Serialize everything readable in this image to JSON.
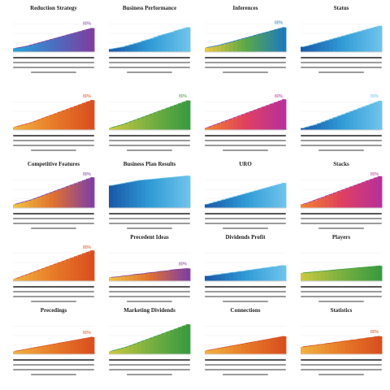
{
  "colors": {
    "blue": [
      "#1a5aa8",
      "#2f9ad6",
      "#6cc2ea"
    ],
    "purple": [
      "#2aa0d8",
      "#4a6fc0",
      "#7d3fa0"
    ],
    "green_blue": [
      "#e8c840",
      "#5aa848",
      "#1f7ab8"
    ],
    "orange": [
      "#f0b040",
      "#e87a28",
      "#d85020"
    ],
    "green": [
      "#c8c840",
      "#7ab040",
      "#3a9a40"
    ],
    "magenta": [
      "#f08030",
      "#e04060",
      "#b83098"
    ],
    "yellow_purple": [
      "#f0c040",
      "#e07030",
      "#8040a0"
    ],
    "axis": "#cfcfcf"
  },
  "chart_data": [
    {
      "type": "area",
      "title": "Reduction Strategy",
      "x": [
        1,
        2,
        3,
        4,
        5,
        6,
        7,
        8,
        9,
        10,
        11,
        12,
        13,
        14,
        15,
        16,
        17,
        18,
        19,
        20
      ],
      "values": [
        10,
        12,
        14,
        16,
        19,
        22,
        25,
        28,
        31,
        34,
        37,
        40,
        43,
        46,
        49,
        52,
        55,
        58,
        61,
        64
      ],
      "value_label": "80%",
      "palette": "purple",
      "ylim": [
        0,
        100
      ]
    },
    {
      "type": "area",
      "title": "Business Performance",
      "x": [
        1,
        2,
        3,
        4,
        5,
        6,
        7,
        8,
        9,
        10,
        11,
        12,
        13,
        14,
        15,
        16,
        17,
        18,
        19,
        20
      ],
      "values": [
        8,
        10,
        12,
        14,
        17,
        20,
        23,
        26,
        30,
        33,
        36,
        40,
        44,
        47,
        50,
        53,
        57,
        60,
        63,
        66
      ],
      "value_label": "",
      "palette": "blue",
      "ylim": [
        0,
        100
      ]
    },
    {
      "type": "area",
      "title": "Inferences",
      "x": [
        1,
        2,
        3,
        4,
        5,
        6,
        7,
        8,
        9,
        10,
        11,
        12,
        13,
        14,
        15,
        16,
        17,
        18,
        19,
        20
      ],
      "values": [
        12,
        14,
        16,
        18,
        21,
        24,
        27,
        30,
        33,
        36,
        39,
        42,
        45,
        48,
        51,
        54,
        57,
        60,
        63,
        66
      ],
      "value_label": "80%",
      "palette": "green_blue",
      "ylim": [
        0,
        100
      ]
    },
    {
      "type": "area",
      "title": "Status",
      "x": [
        1,
        2,
        3,
        4,
        5,
        6,
        7,
        8,
        9,
        10,
        11,
        12,
        13,
        14,
        15,
        16,
        17,
        18,
        19,
        20
      ],
      "values": [
        14,
        16,
        19,
        22,
        25,
        28,
        31,
        34,
        37,
        40,
        43,
        46,
        49,
        52,
        55,
        58,
        61,
        64,
        67,
        70
      ],
      "value_label": "",
      "palette": "blue",
      "ylim": [
        0,
        100
      ]
    },
    {
      "type": "area",
      "title": "",
      "x": [
        1,
        2,
        3,
        4,
        5,
        6,
        7,
        8,
        9,
        10,
        11,
        12,
        13,
        14,
        15,
        16,
        17,
        18,
        19,
        20
      ],
      "values": [
        8,
        11,
        14,
        17,
        20,
        24,
        28,
        32,
        36,
        40,
        44,
        48,
        52,
        56,
        60,
        64,
        68,
        72,
        76,
        80
      ],
      "value_label": "80%",
      "palette": "orange",
      "ylim": [
        0,
        100
      ]
    },
    {
      "type": "area",
      "title": "",
      "x": [
        1,
        2,
        3,
        4,
        5,
        6,
        7,
        8,
        9,
        10,
        11,
        12,
        13,
        14,
        15,
        16,
        17,
        18,
        19,
        20
      ],
      "values": [
        6,
        9,
        12,
        15,
        19,
        23,
        27,
        31,
        35,
        39,
        43,
        47,
        51,
        55,
        59,
        63,
        67,
        71,
        75,
        79
      ],
      "value_label": "80%",
      "palette": "green",
      "ylim": [
        0,
        100
      ]
    },
    {
      "type": "area",
      "title": "",
      "x": [
        1,
        2,
        3,
        4,
        5,
        6,
        7,
        8,
        9,
        10,
        11,
        12,
        13,
        14,
        15,
        16,
        17,
        18,
        19,
        20
      ],
      "values": [
        6,
        10,
        14,
        18,
        22,
        26,
        30,
        34,
        38,
        42,
        46,
        50,
        54,
        58,
        62,
        66,
        70,
        74,
        78,
        82
      ],
      "value_label": "80%",
      "palette": "magenta",
      "ylim": [
        0,
        100
      ]
    },
    {
      "type": "area",
      "title": "",
      "x": [
        1,
        2,
        3,
        4,
        5,
        6,
        7,
        8,
        9,
        10,
        11,
        12,
        13,
        14,
        15,
        16,
        17,
        18,
        19,
        20
      ],
      "values": [
        5,
        8,
        11,
        14,
        18,
        22,
        26,
        30,
        34,
        38,
        42,
        46,
        50,
        54,
        58,
        62,
        66,
        70,
        74,
        78
      ],
      "value_label": "80%",
      "palette": "blue",
      "ylim": [
        0,
        100
      ]
    },
    {
      "type": "area",
      "title": "Competitive Features",
      "x": [
        1,
        2,
        3,
        4,
        5,
        6,
        7,
        8,
        9,
        10,
        11,
        12,
        13,
        14,
        15,
        16,
        17,
        18,
        19,
        20
      ],
      "values": [
        10,
        13,
        16,
        19,
        22,
        26,
        30,
        34,
        38,
        42,
        46,
        50,
        54,
        58,
        62,
        66,
        70,
        74,
        78,
        82
      ],
      "value_label": "80%",
      "palette": "yellow_purple",
      "ylim": [
        0,
        100
      ]
    },
    {
      "type": "area",
      "title": "Business Plan Results",
      "x": [
        1,
        2,
        3,
        4,
        5,
        6,
        7,
        8,
        9,
        10,
        11,
        12,
        13,
        14,
        15,
        16,
        17,
        18,
        19,
        20
      ],
      "values": [
        60,
        62,
        64,
        66,
        68,
        70,
        72,
        74,
        75,
        76,
        77,
        78,
        79,
        80,
        81,
        82,
        83,
        84,
        85,
        86
      ],
      "value_label": "",
      "palette": "blue",
      "ylim": [
        0,
        100
      ]
    },
    {
      "type": "area",
      "title": "URO",
      "x": [
        1,
        2,
        3,
        4,
        5,
        6,
        7,
        8,
        9,
        10,
        11,
        12,
        13,
        14,
        15,
        16,
        17,
        18,
        19,
        20
      ],
      "values": [
        10,
        13,
        16,
        19,
        22,
        25,
        28,
        31,
        34,
        37,
        40,
        43,
        46,
        49,
        52,
        55,
        58,
        61,
        64,
        67
      ],
      "value_label": "",
      "palette": "blue",
      "ylim": [
        0,
        100
      ]
    },
    {
      "type": "area",
      "title": "Stacks",
      "x": [
        1,
        2,
        3,
        4,
        5,
        6,
        7,
        8,
        9,
        10,
        11,
        12,
        13,
        14,
        15,
        16,
        17,
        18,
        19,
        20
      ],
      "values": [
        10,
        13,
        17,
        21,
        25,
        29,
        33,
        37,
        41,
        45,
        49,
        53,
        57,
        61,
        65,
        69,
        73,
        77,
        81,
        85
      ],
      "value_label": "80%",
      "palette": "magenta",
      "ylim": [
        0,
        100
      ]
    },
    {
      "type": "area",
      "title": "",
      "x": [
        1,
        2,
        3,
        4,
        5,
        6,
        7,
        8,
        9,
        10,
        11,
        12,
        13,
        14,
        15,
        16,
        17,
        18,
        19,
        20
      ],
      "values": [
        6,
        10,
        14,
        18,
        22,
        26,
        30,
        34,
        38,
        42,
        46,
        50,
        54,
        58,
        62,
        66,
        70,
        74,
        78,
        82
      ],
      "value_label": "80%",
      "palette": "orange",
      "ylim": [
        0,
        100
      ]
    },
    {
      "type": "area",
      "title": "Precedent Ideas",
      "x": [
        1,
        2,
        3,
        4,
        5,
        6,
        7,
        8,
        9,
        10,
        11,
        12,
        13,
        14,
        15,
        16,
        17,
        18,
        19,
        20
      ],
      "values": [
        10,
        11,
        12,
        14,
        15,
        16,
        18,
        19,
        20,
        22,
        23,
        24,
        26,
        27,
        28,
        30,
        31,
        32,
        33,
        34
      ],
      "value_label": "80%",
      "palette": "yellow_purple",
      "ylim": [
        0,
        100
      ]
    },
    {
      "type": "area",
      "title": "Dividends Profit",
      "x": [
        1,
        2,
        3,
        4,
        5,
        6,
        7,
        8,
        9,
        10,
        11,
        12,
        13,
        14,
        15,
        16,
        17,
        18,
        19,
        20
      ],
      "values": [
        14,
        15,
        17,
        18,
        20,
        21,
        23,
        24,
        26,
        27,
        29,
        30,
        32,
        33,
        35,
        36,
        38,
        39,
        41,
        42
      ],
      "value_label": "",
      "palette": "blue",
      "ylim": [
        0,
        100
      ]
    },
    {
      "type": "area",
      "title": "Players",
      "x": [
        1,
        2,
        3,
        4,
        5,
        6,
        7,
        8,
        9,
        10,
        11,
        12,
        13,
        14,
        15,
        16,
        17,
        18,
        19,
        20
      ],
      "values": [
        22,
        23,
        24,
        25,
        26,
        27,
        28,
        29,
        30,
        31,
        32,
        33,
        34,
        35,
        36,
        37,
        38,
        39,
        40,
        41
      ],
      "value_label": "",
      "palette": "green",
      "ylim": [
        0,
        100
      ]
    },
    {
      "type": "area",
      "title": "Precedings",
      "x": [
        1,
        2,
        3,
        4,
        5,
        6,
        7,
        8,
        9,
        10,
        11,
        12,
        13,
        14,
        15,
        16,
        17,
        18,
        19,
        20
      ],
      "values": [
        8,
        10,
        12,
        14,
        16,
        18,
        20,
        22,
        24,
        26,
        28,
        30,
        32,
        34,
        36,
        38,
        40,
        42,
        44,
        46
      ],
      "value_label": "80%",
      "palette": "orange",
      "ylim": [
        0,
        100
      ]
    },
    {
      "type": "area",
      "title": "Marketing Dividends",
      "x": [
        1,
        2,
        3,
        4,
        5,
        6,
        7,
        8,
        9,
        10,
        11,
        12,
        13,
        14,
        15,
        16,
        17,
        18,
        19,
        20
      ],
      "values": [
        8,
        11,
        14,
        17,
        20,
        24,
        28,
        32,
        36,
        40,
        44,
        48,
        52,
        56,
        60,
        64,
        68,
        72,
        76,
        80
      ],
      "value_label": "",
      "palette": "green",
      "ylim": [
        0,
        100
      ]
    },
    {
      "type": "area",
      "title": "Connections",
      "x": [
        1,
        2,
        3,
        4,
        5,
        6,
        7,
        8,
        9,
        10,
        11,
        12,
        13,
        14,
        15,
        16,
        17,
        18,
        19,
        20
      ],
      "values": [
        10,
        12,
        14,
        16,
        18,
        20,
        22,
        24,
        26,
        28,
        30,
        32,
        34,
        36,
        38,
        40,
        42,
        44,
        46,
        48
      ],
      "value_label": "",
      "palette": "orange",
      "ylim": [
        0,
        100
      ]
    },
    {
      "type": "area",
      "title": "Statistics",
      "x": [
        1,
        2,
        3,
        4,
        5,
        6,
        7,
        8,
        9,
        10,
        11,
        12,
        13,
        14,
        15,
        16,
        17,
        18,
        19,
        20
      ],
      "values": [
        20,
        21,
        23,
        24,
        26,
        27,
        29,
        30,
        32,
        33,
        35,
        36,
        38,
        39,
        41,
        42,
        44,
        45,
        47,
        48
      ],
      "value_label": "80%",
      "palette": "orange",
      "ylim": [
        0,
        100
      ]
    }
  ]
}
